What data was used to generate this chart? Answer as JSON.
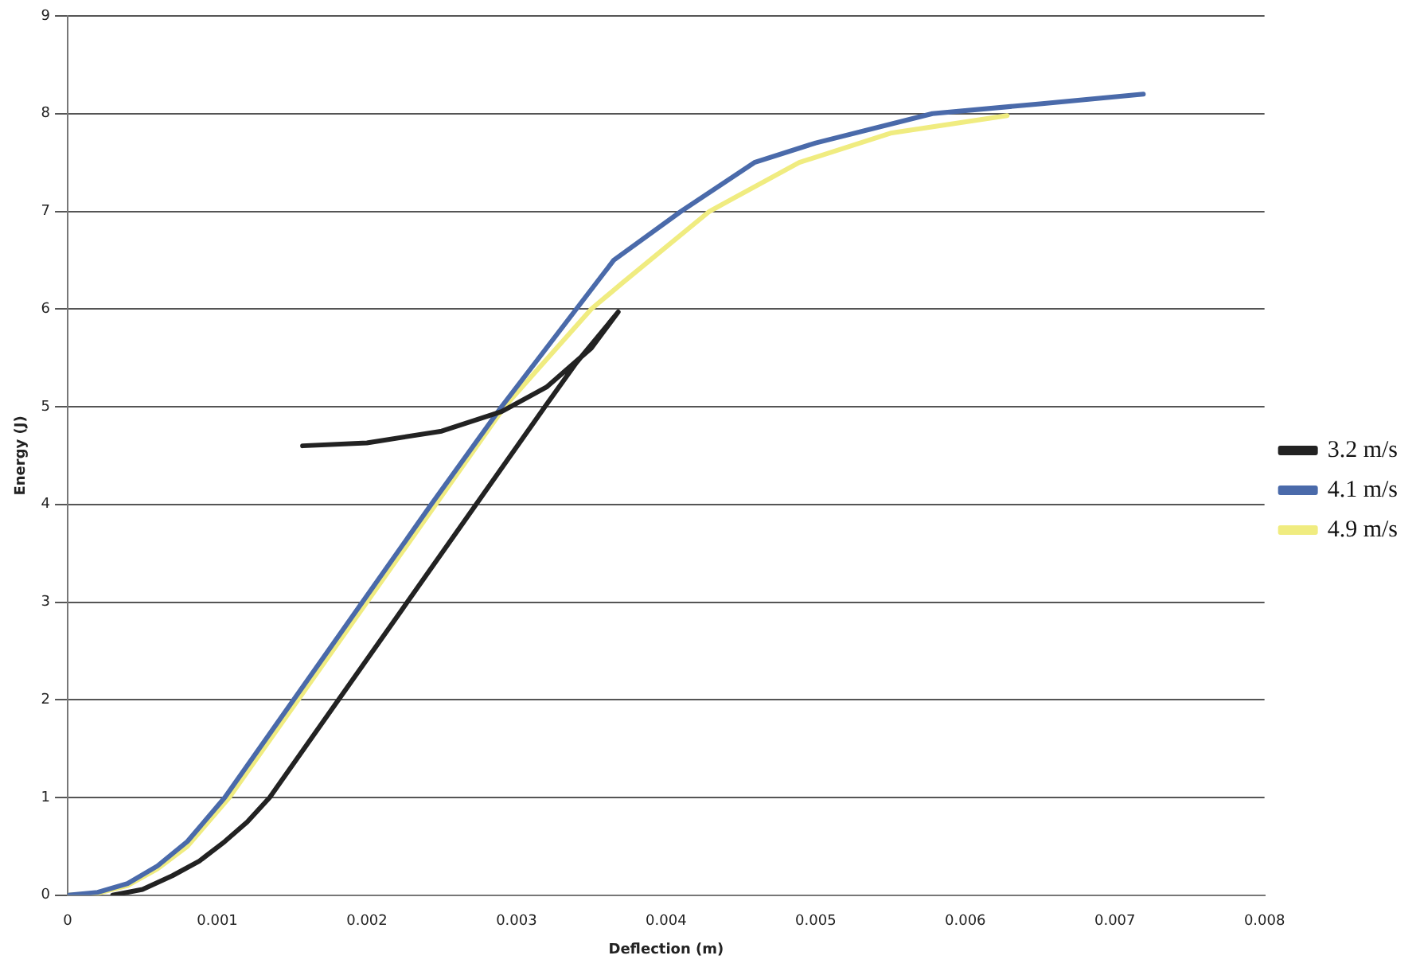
{
  "chart_data": {
    "type": "line",
    "xlabel": "Deflection (m)",
    "ylabel": "Energy (J)",
    "xlim": [
      0,
      0.008
    ],
    "xticks": [
      0,
      0.001,
      0.002,
      0.003,
      0.004,
      0.005,
      0.006,
      0.007,
      0.008
    ],
    "ylim": [
      0,
      9
    ],
    "yticks": [
      0,
      1,
      2,
      3,
      4,
      5,
      6,
      7,
      8,
      9
    ],
    "grid": "y",
    "legend": "right",
    "marker": "none",
    "line_style": "solid",
    "series": [
      {
        "name": "3.2 m/s",
        "color": "#222222",
        "x": [
          0.0003,
          0.0005,
          0.0007,
          0.00088,
          0.00105,
          0.0012,
          0.00135,
          0.00181,
          0.00227,
          0.00273,
          0.00319,
          0.0034,
          0.00368,
          0.0035,
          0.0032,
          0.0029,
          0.0025,
          0.002,
          0.00157
        ],
        "values": [
          0,
          0.06,
          0.2,
          0.35,
          0.55,
          0.75,
          1,
          2,
          3,
          4,
          5,
          5.45,
          5.97,
          5.6,
          5.2,
          4.95,
          4.75,
          4.63,
          4.6
        ]
      },
      {
        "name": "4.1 m/s",
        "color": "#4a6aaa",
        "x": [
          0,
          0.0002,
          0.0004,
          0.0006,
          0.0008,
          0.00105,
          0.00151,
          0.00197,
          0.00243,
          0.0029,
          0.0034,
          0.00365,
          0.0041,
          0.00459,
          0.005,
          0.00578,
          0.0065,
          0.00719
        ],
        "values": [
          0,
          0.03,
          0.12,
          0.3,
          0.55,
          1,
          2,
          3,
          4,
          5,
          6,
          6.5,
          7,
          7.5,
          7.7,
          8,
          8.1,
          8.2
        ]
      },
      {
        "name": "4.9 m/s",
        "color": "#f0ec80",
        "x": [
          0,
          0.0002,
          0.0004,
          0.0006,
          0.0008,
          0.00108,
          0.00154,
          0.002,
          0.00246,
          0.00292,
          0.0035,
          0.00371,
          0.00429,
          0.00489,
          0.0055,
          0.00628
        ],
        "values": [
          0,
          0.02,
          0.1,
          0.27,
          0.5,
          1,
          2,
          3,
          4,
          5,
          6,
          6.27,
          7,
          7.5,
          7.8,
          7.98
        ]
      }
    ]
  }
}
